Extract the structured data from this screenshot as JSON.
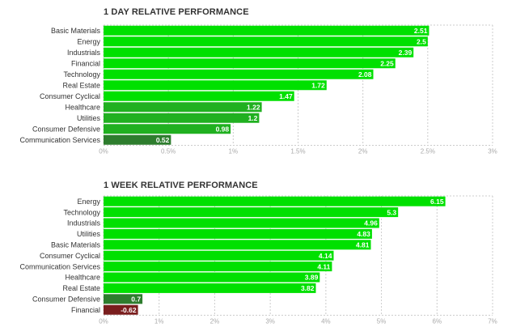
{
  "chart_data": [
    {
      "type": "bar",
      "orientation": "horizontal",
      "title": "1 DAY RELATIVE PERFORMANCE",
      "categories": [
        "Basic Materials",
        "Energy",
        "Industrials",
        "Financial",
        "Technology",
        "Real Estate",
        "Consumer Cyclical",
        "Healthcare",
        "Utilities",
        "Consumer Defensive",
        "Communication Services"
      ],
      "values": [
        2.51,
        2.5,
        2.39,
        2.25,
        2.08,
        1.72,
        1.47,
        1.22,
        1.2,
        0.98,
        0.52
      ],
      "value_labels": [
        "2.51",
        "2.5",
        "2.39",
        "2.25",
        "2.08",
        "1.72",
        "1.47",
        "1.22",
        "1.2",
        "0.98",
        "0.52"
      ],
      "xlim": [
        0,
        3
      ],
      "xticks": [
        0,
        0.5,
        1,
        1.5,
        2,
        2.5,
        3
      ],
      "xtick_labels": [
        "0%",
        "0.5%",
        "1%",
        "1.5%",
        "2%",
        "2.5%",
        "3%"
      ],
      "grid": true
    },
    {
      "type": "bar",
      "orientation": "horizontal",
      "title": "1 WEEK RELATIVE PERFORMANCE",
      "categories": [
        "Energy",
        "Technology",
        "Industrials",
        "Utilities",
        "Basic Materials",
        "Consumer Cyclical",
        "Communication Services",
        "Healthcare",
        "Real Estate",
        "Consumer Defensive",
        "Financial"
      ],
      "values": [
        6.15,
        5.3,
        4.96,
        4.83,
        4.81,
        4.14,
        4.11,
        3.89,
        3.82,
        0.7,
        -0.62
      ],
      "value_labels": [
        "6.15",
        "5.3",
        "4.96",
        "4.83",
        "4.81",
        "4.14",
        "4.11",
        "3.89",
        "3.82",
        "0.7",
        "-0.62"
      ],
      "xlim": [
        0,
        7
      ],
      "xticks": [
        0,
        1,
        2,
        3,
        4,
        5,
        6,
        7
      ],
      "xtick_labels": [
        "0%",
        "1%",
        "2%",
        "3%",
        "4%",
        "5%",
        "6%",
        "7%"
      ],
      "grid": true
    }
  ],
  "colors": {
    "bright_green": "#00e000",
    "medium_green": "#20b020",
    "dark_green": "#2e7d2e",
    "negative_red": "#7a1e1e",
    "grid": "#cccccc",
    "tick_text": "#aaaaaa",
    "label_text": "#333333"
  }
}
